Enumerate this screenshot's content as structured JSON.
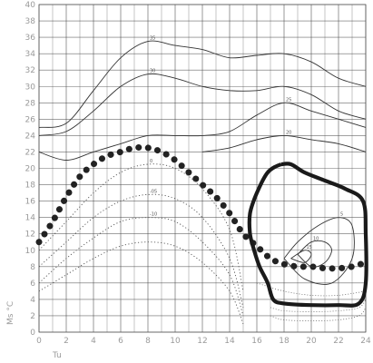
{
  "chart_data": {
    "type": "line",
    "title": "",
    "xlabel": "Tu",
    "ylabel": "Ms °C",
    "xlim": [
      0,
      24
    ],
    "ylim": [
      0,
      40
    ],
    "grid": true,
    "x_ticks": [
      "0",
      "2",
      "4",
      "6",
      "8",
      "10",
      "12",
      "14",
      "16",
      "18",
      "20",
      "22",
      "24"
    ],
    "y_ticks": [
      "0",
      "2",
      "4",
      "6",
      "8",
      "10",
      "12",
      "14",
      "16",
      "18",
      "20",
      "22",
      "24",
      "26",
      "28",
      "30",
      "32",
      "34",
      "36",
      "38",
      "40"
    ],
    "series": [
      {
        "name": "",
        "label": "35",
        "style": "thin-solid",
        "color": "#333333",
        "x": [
          0,
          2,
          4,
          6,
          8,
          10,
          12,
          14,
          16,
          18,
          20,
          22,
          24
        ],
        "y": [
          25,
          25.5,
          29.5,
          33.5,
          35.5,
          35,
          34.5,
          33.5,
          33.8,
          34,
          33,
          31,
          30
        ]
      },
      {
        "name": "",
        "label": "30",
        "style": "thin-solid",
        "color": "#333333",
        "x": [
          0,
          2,
          4,
          6,
          8,
          10,
          12,
          14,
          16,
          18,
          20,
          22,
          24
        ],
        "y": [
          24,
          24.5,
          27,
          30,
          31.5,
          31,
          30,
          29.5,
          29.5,
          30,
          29,
          27,
          26
        ]
      },
      {
        "name": "",
        "label": "25",
        "style": "thin-solid",
        "color": "#333333",
        "x": [
          0,
          2,
          4,
          6,
          8,
          10,
          12,
          14,
          16,
          18,
          20,
          22,
          24
        ],
        "y": [
          22,
          21,
          22,
          23,
          24,
          24,
          24,
          24.5,
          26.5,
          28,
          27,
          26,
          25
        ]
      },
      {
        "name": "",
        "label": "20",
        "style": "thin-solid",
        "color": "#333333",
        "x": [
          12,
          14,
          16,
          18,
          20,
          22,
          24
        ],
        "y": [
          22,
          22.5,
          23.5,
          24,
          23.5,
          23,
          22
        ]
      },
      {
        "name": "",
        "label": "",
        "style": "dotted-bold",
        "color": "#222222",
        "x": [
          0,
          1,
          2,
          3,
          4,
          5,
          6,
          7,
          8,
          9,
          10,
          11,
          12,
          13,
          14,
          15,
          16,
          17,
          18,
          19,
          20,
          21,
          22,
          23,
          24
        ],
        "y": [
          11,
          13.5,
          16.5,
          19,
          20.5,
          21.5,
          22,
          22.5,
          22.5,
          22,
          21,
          19.5,
          18,
          16.5,
          14.5,
          12,
          10.5,
          9,
          8.3,
          8,
          8,
          7.8,
          7.8,
          8,
          8.5
        ]
      },
      {
        "name": "",
        "label": "0",
        "style": "dotted",
        "color": "#555555",
        "x": [
          0,
          2,
          4,
          6,
          8,
          10,
          12,
          14,
          15
        ],
        "y": [
          10,
          13.5,
          17,
          19.5,
          20.5,
          20,
          17.5,
          12.5,
          5
        ]
      },
      {
        "name": "",
        "label": "-05",
        "style": "dotted",
        "color": "#555555",
        "x": [
          0,
          2,
          4,
          6,
          8,
          10,
          12,
          14,
          15
        ],
        "y": [
          8,
          11,
          14,
          16,
          16.8,
          16.3,
          14,
          9,
          3
        ]
      },
      {
        "name": "",
        "label": "-10",
        "style": "dotted",
        "color": "#555555",
        "x": [
          0,
          2,
          4,
          6,
          8,
          10,
          12,
          14,
          15
        ],
        "y": [
          6,
          9,
          11.5,
          13.5,
          14,
          13.5,
          11,
          7,
          2
        ]
      },
      {
        "name": "",
        "label": "",
        "style": "dotted",
        "color": "#555555",
        "x": [
          0,
          2,
          4,
          6,
          8,
          10,
          12,
          14,
          15
        ],
        "y": [
          5,
          7,
          9,
          10.5,
          11,
          10.5,
          8.5,
          5,
          1
        ]
      },
      {
        "name": "",
        "label": "5",
        "style": "thin-solid",
        "color": "#333333",
        "x": [
          18,
          19,
          20.5,
          22,
          23,
          23,
          21.5,
          19.5,
          18
        ],
        "y": [
          9,
          11,
          13,
          14,
          13,
          9,
          6,
          6.5,
          9
        ]
      },
      {
        "name": "",
        "label": "10",
        "style": "thin-solid",
        "color": "#333333",
        "x": [
          19,
          20,
          21,
          21.5,
          21,
          20,
          19
        ],
        "y": [
          9.5,
          11,
          11,
          10,
          8.5,
          8,
          9.5
        ]
      },
      {
        "name": "",
        "label": "15",
        "style": "thin-solid",
        "color": "#333333",
        "x": [
          18.5,
          19.5,
          20,
          19.5,
          18.5
        ],
        "y": [
          9,
          10,
          9.5,
          8.5,
          9
        ]
      },
      {
        "name": "",
        "label": "",
        "style": "dotted-thin",
        "color": "#555555",
        "x": [
          17,
          18,
          20,
          22,
          23.5,
          24
        ],
        "y": [
          2,
          1.5,
          1.4,
          1.5,
          2,
          3
        ]
      },
      {
        "name": "",
        "label": "",
        "style": "dotted-thin",
        "color": "#555555",
        "x": [
          17,
          18,
          20,
          22,
          23.5,
          24
        ],
        "y": [
          3,
          2.6,
          2.5,
          2.6,
          3,
          4
        ]
      },
      {
        "name": "",
        "label": "",
        "style": "dotted-thin",
        "color": "#555555",
        "x": [
          16,
          18,
          20,
          22,
          24
        ],
        "y": [
          6,
          5,
          4.5,
          4.5,
          5
        ]
      }
    ],
    "closed_regions": [
      {
        "name": "",
        "label": "",
        "style": "thick-solid",
        "color": "#1a1a1a",
        "x": [
          17.8,
          18.5,
          19.5,
          21,
          22.5,
          23.8,
          24,
          24,
          23.5,
          22,
          20,
          18,
          17.2,
          16.8,
          16.2,
          15.8,
          15.5,
          15.5,
          16,
          16.8,
          17.8
        ],
        "y": [
          20.5,
          20.5,
          19.5,
          18.5,
          17.5,
          16,
          12,
          6,
          3.5,
          3.3,
          3.3,
          3.5,
          4,
          6,
          8,
          10,
          12,
          14.5,
          17,
          19.5,
          20.5
        ]
      }
    ]
  }
}
